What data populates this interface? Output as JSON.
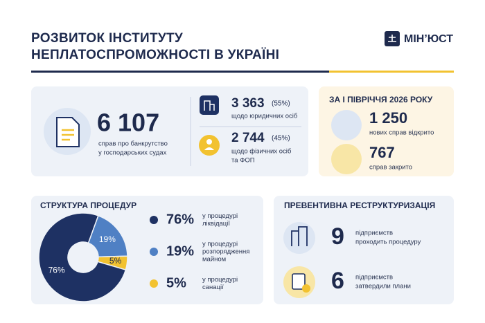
{
  "header": {
    "title_lines": [
      "РОЗВИТОК ІНСТИТУТУ",
      "НЕПЛАТОСПРОМОЖНОСТІ В УКРАЇНІ"
    ],
    "logo": "МІН’ЮСТ"
  },
  "cases": {
    "total": "6 107",
    "total_label_lines": [
      "справ про банкрутство",
      "у господарських судах"
    ],
    "legal": {
      "value": "3 363",
      "share": "(55%)",
      "label": "щодо юридичних осіб"
    },
    "individuals": {
      "value": "2 744",
      "share": "(45%)",
      "label_lines": [
        "щодо фізичних осіб",
        "та ФОП"
      ]
    }
  },
  "half_year": {
    "title": "ЗА І ПІВРІЧЧЯ 2026 РОКУ",
    "opened": {
      "value": "1 250",
      "label": "нових справ відкрито"
    },
    "closed": {
      "value": "767",
      "label": "справ закрито"
    }
  },
  "structure": {
    "title": "СТРУКТУРА ПРОЦЕДУР",
    "values": [
      76,
      19,
      5
    ],
    "value_labels": [
      "76%",
      "19%",
      "5%"
    ],
    "colors": [
      "#1e3163",
      "#4f80c4",
      "#f2c230"
    ],
    "label_lines": [
      [
        "у процедурі",
        "ліквідації"
      ],
      [
        "у процедурі",
        "розпорядження",
        "майном"
      ],
      [
        "у процедурі",
        "санації"
      ]
    ]
  },
  "restructuring": {
    "title": "ПРЕВЕНТИВНА РЕСТРУКТУРИЗАЦІЯ",
    "items": [
      {
        "value": "9",
        "label_lines": [
          "підприємств",
          "проходить процедуру"
        ]
      },
      {
        "value": "6",
        "label_lines": [
          "підприємств",
          "затвердили плани"
        ]
      }
    ]
  }
}
